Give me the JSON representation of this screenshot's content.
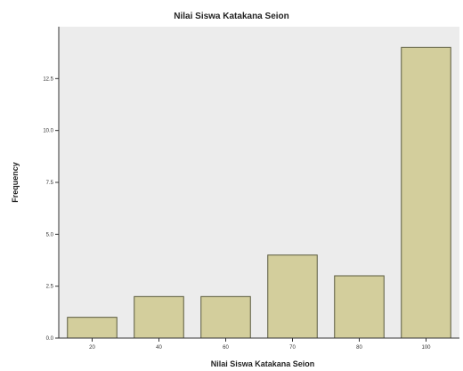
{
  "chart_data": {
    "type": "bar",
    "title": "Nilai Siswa Katakana Seion",
    "xlabel": "Nilai Siswa Katakana Seion",
    "ylabel": "Frequency",
    "categories": [
      "20",
      "40",
      "60",
      "70",
      "80",
      "100"
    ],
    "values": [
      1,
      2,
      2,
      4,
      3,
      14
    ],
    "ylim": [
      0,
      15
    ],
    "yticks": [
      0,
      2.5,
      5,
      7.5,
      10,
      12.5
    ],
    "ytick_labels": [
      "0.0",
      "2.5",
      "5.0",
      "7.5",
      "10.0",
      "12.5"
    ],
    "grid": false,
    "legend": "none",
    "colors": {
      "plot_background": "#ececec",
      "bar_fill": "#d3ce9c",
      "bar_stroke": "#5a5a3c",
      "axis": "#333333"
    }
  }
}
